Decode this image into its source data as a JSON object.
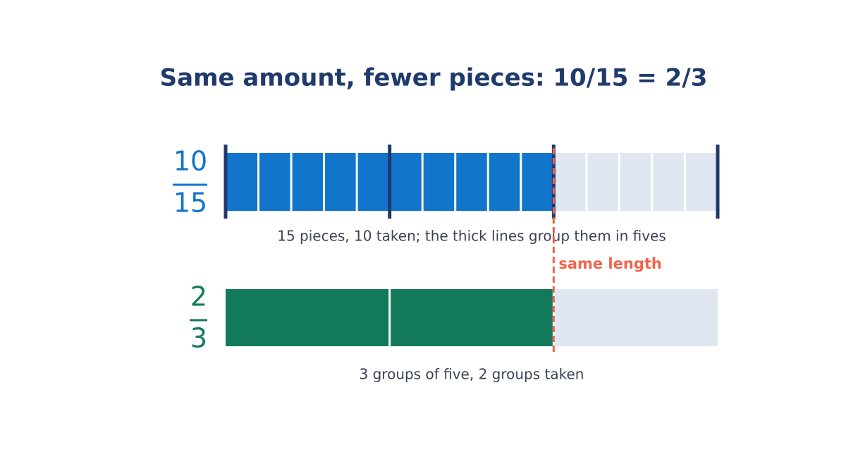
{
  "title": "Same amount, fewer pieces: 10/15 = 2/3",
  "fractions": [
    {
      "numerator": 10,
      "denominator": 15,
      "caption": "15 pieces, 10 taken; the thick lines group them in fives",
      "color": "#1275cc"
    },
    {
      "numerator": 2,
      "denominator": 3,
      "caption": "3 groups of five, 2 groups taken",
      "color": "#127a5a"
    }
  ],
  "annotation": "same length"
}
